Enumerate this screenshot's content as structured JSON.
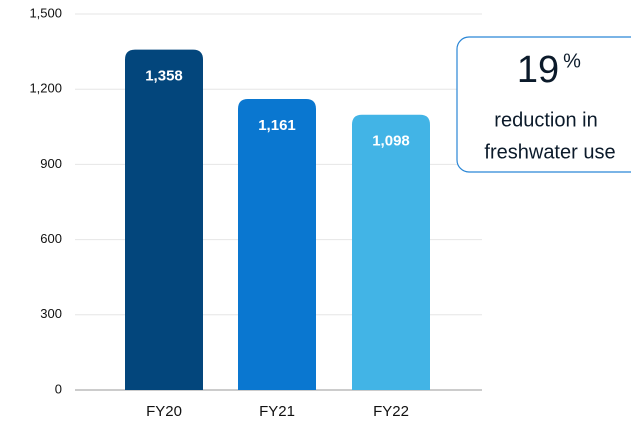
{
  "chart_data": {
    "type": "bar",
    "categories": [
      "FY20",
      "FY21",
      "FY22"
    ],
    "values": [
      1358,
      1161,
      1098
    ],
    "value_labels": [
      "1,358",
      "1,161",
      "1,098"
    ],
    "colors": [
      "#03467c",
      "#0a77d0",
      "#42b4e6"
    ],
    "ylim": [
      0,
      1500
    ],
    "yticks": [
      0,
      300,
      600,
      900,
      {
        "value": 1200,
        "label": "1,200"
      },
      {
        "value": 1500,
        "label": "1,500"
      }
    ],
    "grid": true,
    "callout": {
      "number": "19",
      "unit": "%",
      "lines": [
        "reduction in",
        "freshwater use"
      ]
    }
  }
}
